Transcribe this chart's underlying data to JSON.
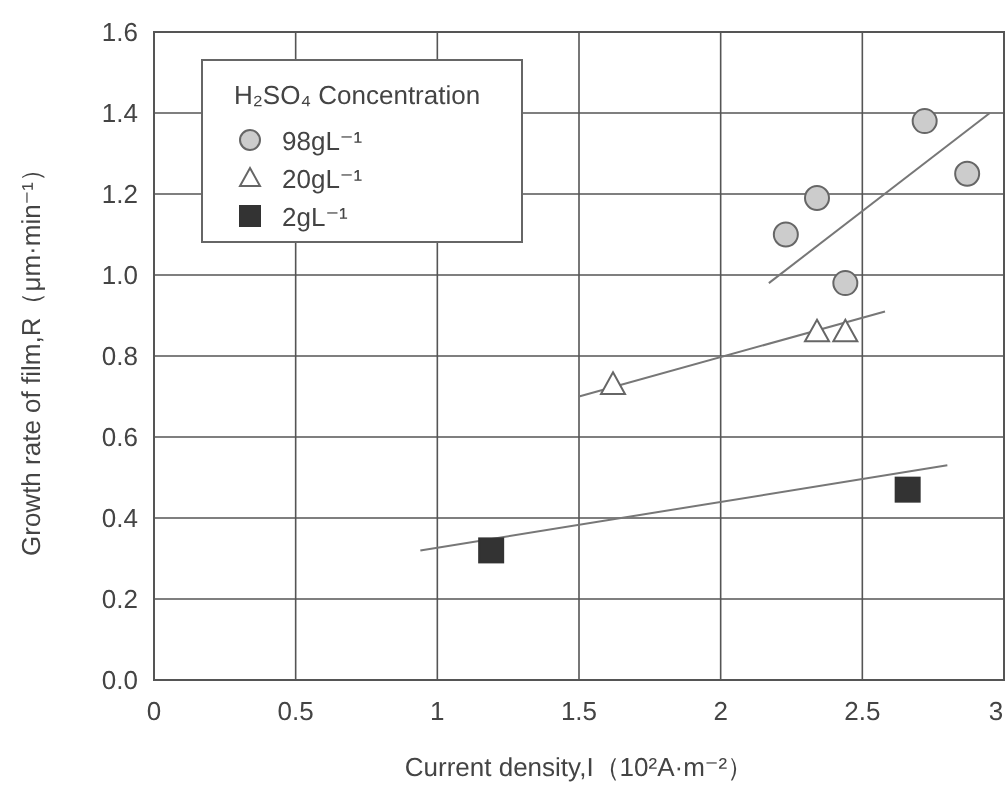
{
  "chart_data": {
    "type": "scatter",
    "xlabel": "Current density,I（10²A·m⁻²）",
    "ylabel": "Growth rate of film,R（μm·min⁻¹）",
    "legend_title": "H₂SO₄ Concentration",
    "legend": "top left",
    "grid": true,
    "xlim": [
      0,
      3
    ],
    "xticks": [
      0,
      0.5,
      1,
      1.5,
      2,
      2.5,
      3
    ],
    "ylim": [
      0,
      1.6
    ],
    "yticks": [
      {
        "value": 0,
        "label": "0.0"
      },
      {
        "value": 0.2,
        "label": "0.2"
      },
      {
        "value": 0.4,
        "label": "0.4"
      },
      {
        "value": 0.6,
        "label": "0.6"
      },
      {
        "value": 0.8,
        "label": "0.8"
      },
      {
        "value": 1,
        "label": "1.0"
      },
      {
        "value": 1.2,
        "label": "1.2"
      },
      {
        "value": 1.4,
        "label": "1.4"
      },
      {
        "value": 1.6,
        "label": "1.6"
      }
    ],
    "series": [
      {
        "name": "98gL⁻¹",
        "marker": "circle",
        "color": "#cccccc",
        "x": [
          2.23,
          2.34,
          2.44,
          2.72,
          2.87
        ],
        "values": [
          1.1,
          1.19,
          0.98,
          1.38,
          1.25
        ]
      },
      {
        "name": "20gL⁻¹",
        "marker": "triangle",
        "color": "#ffffff",
        "x": [
          1.62,
          2.34,
          2.44
        ],
        "values": [
          0.73,
          0.86,
          0.86
        ]
      },
      {
        "name": "2gL⁻¹",
        "marker": "square",
        "color": "#333333",
        "x": [
          1.19,
          2.66
        ],
        "values": [
          0.32,
          0.47
        ]
      },
      {
        "type": "line",
        "color": "#777777",
        "x": [
          2.17,
          2.95
        ],
        "values": [
          0.98,
          1.4
        ]
      },
      {
        "type": "line",
        "color": "#777777",
        "x": [
          1.5,
          2.58
        ],
        "values": [
          0.7,
          0.91
        ]
      },
      {
        "type": "line",
        "color": "#777777",
        "x": [
          0.94,
          2.8
        ],
        "values": [
          0.32,
          0.53
        ]
      }
    ]
  }
}
